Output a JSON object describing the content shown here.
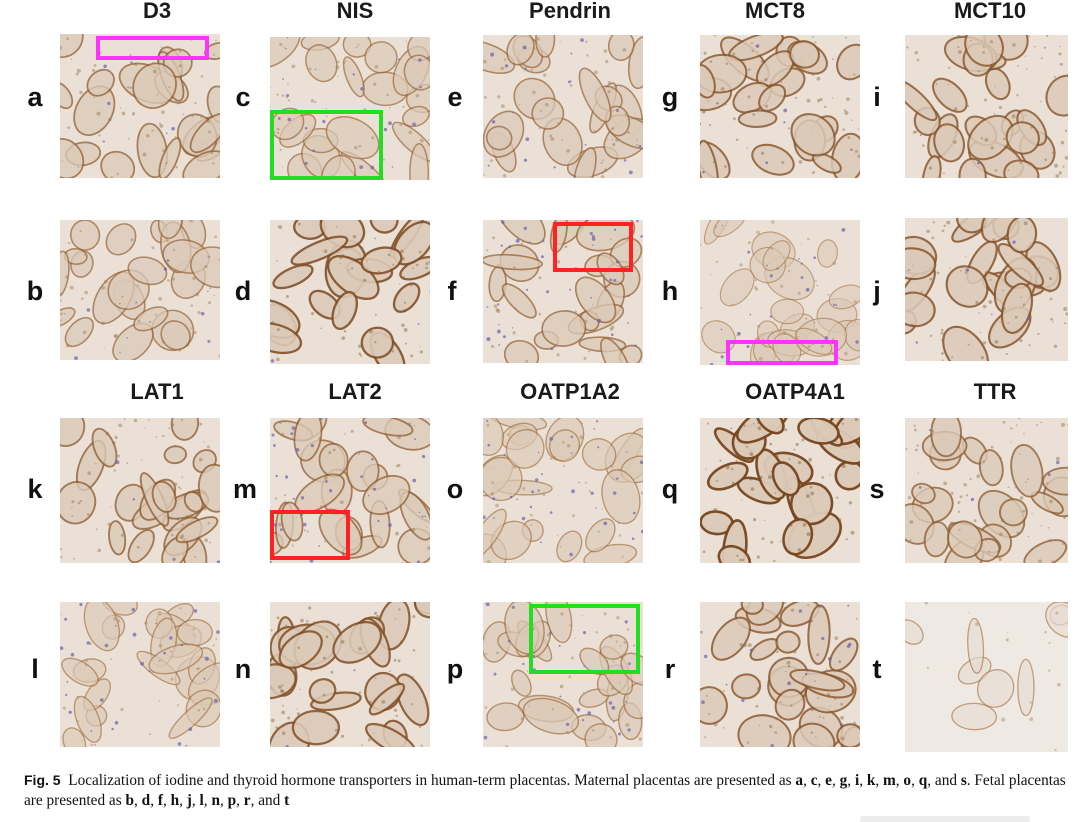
{
  "figure": {
    "column_titles": {
      "top": [
        "D3",
        "NIS",
        "Pendrin",
        "MCT8",
        "MCT10"
      ],
      "bottom": [
        "LAT1",
        "LAT2",
        "OATP1A2",
        "OATP4A1",
        "TTR"
      ]
    },
    "panels": [
      {
        "id": "a",
        "marker": "magenta"
      },
      {
        "id": "b"
      },
      {
        "id": "c",
        "marker": "green"
      },
      {
        "id": "d"
      },
      {
        "id": "e"
      },
      {
        "id": "f",
        "marker": "red"
      },
      {
        "id": "g"
      },
      {
        "id": "h",
        "marker": "magenta"
      },
      {
        "id": "i"
      },
      {
        "id": "j"
      },
      {
        "id": "k"
      },
      {
        "id": "l"
      },
      {
        "id": "m",
        "marker": "red"
      },
      {
        "id": "n"
      },
      {
        "id": "o"
      },
      {
        "id": "p",
        "marker": "green"
      },
      {
        "id": "q"
      },
      {
        "id": "r"
      },
      {
        "id": "s"
      },
      {
        "id": "t"
      }
    ],
    "marker_colors": {
      "magenta": "#ff33ff",
      "green": "#22dd22",
      "red": "#ff2222"
    },
    "caption": {
      "label": "Fig. 5",
      "text": "Localization of iodine and thyroid hormone transporters in human-term placentas. Maternal placentas are presented as a, c, e, g, i, k, m, o, q, and s. Fetal placentas are presented as b, d, f, h, j, l, n, p, r, and t",
      "segments": [
        {
          "t": "Localization of iodine and thyroid hormone transporters in human-term placentas. Maternal placentas are presented as "
        },
        {
          "t": "a",
          "b": true
        },
        {
          "t": ", "
        },
        {
          "t": "c",
          "b": true
        },
        {
          "t": ", "
        },
        {
          "t": "e",
          "b": true
        },
        {
          "t": ", "
        },
        {
          "t": "g",
          "b": true
        },
        {
          "t": ", "
        },
        {
          "t": "i",
          "b": true
        },
        {
          "t": ", "
        },
        {
          "t": "k",
          "b": true
        },
        {
          "t": ", "
        },
        {
          "t": "m",
          "b": true
        },
        {
          "t": ", "
        },
        {
          "t": "o",
          "b": true
        },
        {
          "t": ", "
        },
        {
          "t": "q",
          "b": true
        },
        {
          "t": ", and "
        },
        {
          "t": "s",
          "b": true
        },
        {
          "t": ". Fetal placentas are presented as "
        },
        {
          "t": "b",
          "b": true
        },
        {
          "t": ", "
        },
        {
          "t": "d",
          "b": true
        },
        {
          "t": ", "
        },
        {
          "t": "f",
          "b": true
        },
        {
          "t": ", "
        },
        {
          "t": "h",
          "b": true
        },
        {
          "t": ", "
        },
        {
          "t": "j",
          "b": true
        },
        {
          "t": ", "
        },
        {
          "t": "l",
          "b": true
        },
        {
          "t": ", "
        },
        {
          "t": "n",
          "b": true
        },
        {
          "t": ", "
        },
        {
          "t": "p",
          "b": true
        },
        {
          "t": ", "
        },
        {
          "t": "r",
          "b": true
        },
        {
          "t": ", and "
        },
        {
          "t": "t",
          "b": true
        }
      ]
    }
  }
}
